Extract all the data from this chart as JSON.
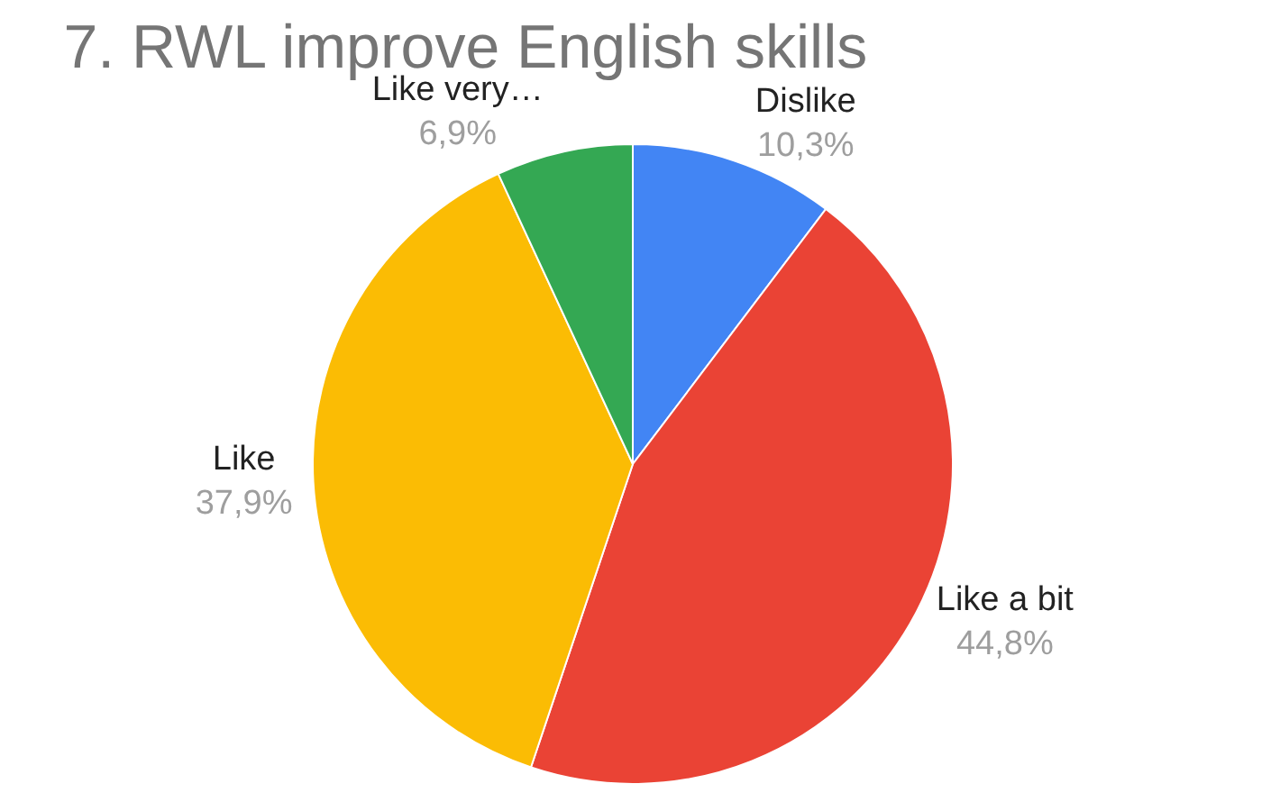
{
  "chart_data": {
    "type": "pie",
    "title": "7. RWL improve English skills",
    "categories": [
      "Dislike",
      "Like a bit",
      "Like",
      "Like very…"
    ],
    "values": [
      10.3,
      44.8,
      37.9,
      6.9
    ],
    "colors": [
      "#4285f4",
      "#ea4335",
      "#fbbc04",
      "#34a853"
    ],
    "value_labels": [
      "10,3%",
      "44,8%",
      "37,9%",
      "6,9%"
    ],
    "legend": false
  }
}
